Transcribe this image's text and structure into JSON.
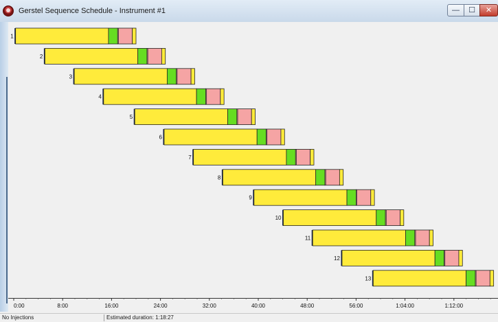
{
  "window": {
    "title": "Gerstel Sequence Schedule - Instrument #1",
    "icon": "gerstel-app-icon",
    "controls": {
      "minimize": "—",
      "maximize": "☐",
      "close": "✕"
    }
  },
  "status": {
    "left": "No Injections",
    "right": "Estimated duration: 1:18:27"
  },
  "colors": {
    "prep": "#ffeb3b",
    "inject": "#66dd22",
    "wait": "#f5a4a4",
    "tail": "#ffeb3b",
    "outline": "#222222"
  },
  "chart_data": {
    "type": "gantt",
    "x_unit": "minutes",
    "xlim": [
      0,
      79
    ],
    "x_ticks": [
      {
        "value": 0,
        "label": "0:00"
      },
      {
        "value": 8,
        "label": "8:00"
      },
      {
        "value": 16,
        "label": "16:00"
      },
      {
        "value": 24,
        "label": "24:00"
      },
      {
        "value": 32,
        "label": "32:00"
      },
      {
        "value": 40,
        "label": "40:00"
      },
      {
        "value": 48,
        "label": "48:00"
      },
      {
        "value": 56,
        "label": "56:00"
      },
      {
        "value": 64,
        "label": "1:04:00"
      },
      {
        "value": 72,
        "label": "1:12:00"
      }
    ],
    "rows": [
      {
        "label": "1",
        "start": 0.3,
        "prep": 15.2,
        "inject": 1.5,
        "wait": 2.4,
        "tail": 0.6
      },
      {
        "label": "2",
        "start": 5.1,
        "prep": 15.2,
        "inject": 1.5,
        "wait": 2.4,
        "tail": 0.6
      },
      {
        "label": "3",
        "start": 9.9,
        "prep": 15.2,
        "inject": 1.5,
        "wait": 2.4,
        "tail": 0.6
      },
      {
        "label": "4",
        "start": 14.7,
        "prep": 15.2,
        "inject": 1.5,
        "wait": 2.4,
        "tail": 0.6
      },
      {
        "label": "5",
        "start": 19.8,
        "prep": 15.2,
        "inject": 1.5,
        "wait": 2.4,
        "tail": 0.6
      },
      {
        "label": "6",
        "start": 24.6,
        "prep": 15.2,
        "inject": 1.5,
        "wait": 2.4,
        "tail": 0.6
      },
      {
        "label": "7",
        "start": 29.4,
        "prep": 15.2,
        "inject": 1.5,
        "wait": 2.4,
        "tail": 0.6
      },
      {
        "label": "8",
        "start": 34.2,
        "prep": 15.2,
        "inject": 1.5,
        "wait": 2.4,
        "tail": 0.6
      },
      {
        "label": "9",
        "start": 39.3,
        "prep": 15.2,
        "inject": 1.5,
        "wait": 2.4,
        "tail": 0.6
      },
      {
        "label": "10",
        "start": 44.1,
        "prep": 15.2,
        "inject": 1.5,
        "wait": 2.4,
        "tail": 0.6
      },
      {
        "label": "11",
        "start": 48.9,
        "prep": 15.2,
        "inject": 1.5,
        "wait": 2.4,
        "tail": 0.6
      },
      {
        "label": "12",
        "start": 53.7,
        "prep": 15.2,
        "inject": 1.5,
        "wait": 2.4,
        "tail": 0.6
      },
      {
        "label": "13",
        "start": 58.8,
        "prep": 15.2,
        "inject": 1.5,
        "wait": 2.4,
        "tail": 0.6
      }
    ]
  }
}
